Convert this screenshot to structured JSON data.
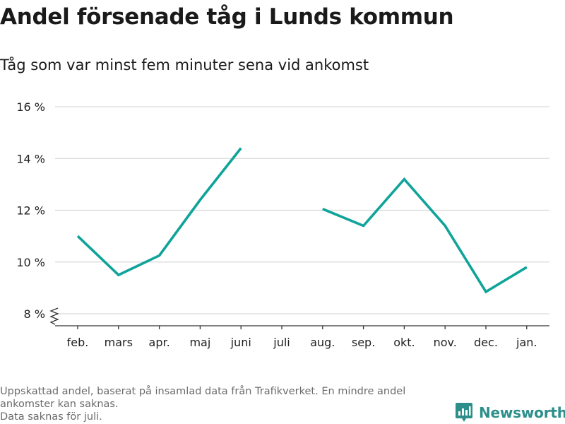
{
  "header": {
    "title": "Andel försenade tåg i Lunds kommun",
    "subtitle": "Tåg som var minst fem minuter sena vid ankomst"
  },
  "footer": {
    "note_line_1": "Uppskattad andel, baserat på insamlad data från Trafikverket. En mindre andel",
    "note_line_2": "ankomster kan saknas.",
    "note_line_3": "Data saknas för juli.",
    "brand": "Newsworthy",
    "brand_icon": "newsworthy-logo-icon"
  },
  "colors": {
    "line": "#0fa39a",
    "grid": "#d9d9d9",
    "axis": "#333333",
    "brand": "#2d8f8a"
  },
  "chart_data": {
    "type": "line",
    "title": "Andel försenade tåg i Lunds kommun",
    "subtitle": "Tåg som var minst fem minuter sena vid ankomst",
    "categories": [
      "feb.",
      "mars",
      "apr.",
      "maj",
      "juni",
      "juli",
      "aug.",
      "sep.",
      "okt.",
      "nov.",
      "dec.",
      "jan."
    ],
    "series": [
      {
        "values": [
          11.0,
          9.5,
          10.25,
          12.4,
          14.4,
          null,
          12.05,
          11.4,
          13.2,
          11.4,
          8.85,
          9.8
        ]
      }
    ],
    "y_ticks": [
      8,
      10,
      12,
      14,
      16
    ],
    "y_tick_labels": [
      "8 %",
      "10 %",
      "12 %",
      "14 %",
      "16 %"
    ],
    "ylim": [
      8,
      16
    ],
    "y_axis_break": true,
    "grid": true,
    "legend": "none"
  }
}
